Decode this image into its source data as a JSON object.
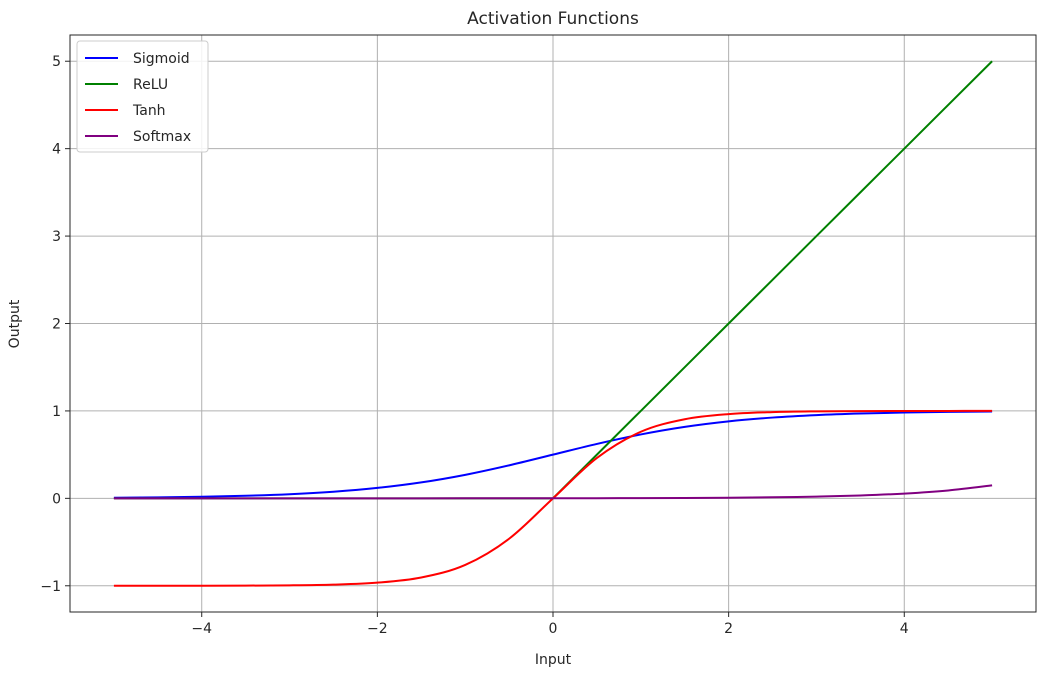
{
  "chart_data": {
    "type": "line",
    "title": "Activation Functions",
    "xlabel": "Input",
    "ylabel": "Output",
    "xlim": [
      -5.5,
      5.5
    ],
    "ylim": [
      -1.3,
      5.3
    ],
    "xticks": [
      -4,
      -2,
      0,
      2,
      4
    ],
    "yticks": [
      -1,
      0,
      1,
      2,
      3,
      4,
      5
    ],
    "xtick_labels": [
      "−4",
      "−2",
      "0",
      "2",
      "4"
    ],
    "ytick_labels": [
      "−1",
      "0",
      "1",
      "2",
      "3",
      "4",
      "5"
    ],
    "grid": true,
    "legend_position": "top-left",
    "x": [
      -5.0,
      -4.5,
      -4.0,
      -3.5,
      -3.0,
      -2.5,
      -2.0,
      -1.5,
      -1.0,
      -0.5,
      0.0,
      0.5,
      1.0,
      1.5,
      2.0,
      2.5,
      3.0,
      3.5,
      4.0,
      4.5,
      5.0
    ],
    "series": [
      {
        "name": "Sigmoid",
        "color": "#0000ff",
        "values": [
          0.0067,
          0.011,
          0.018,
          0.0293,
          0.0474,
          0.0759,
          0.1192,
          0.1824,
          0.2689,
          0.3775,
          0.5,
          0.6225,
          0.7311,
          0.8176,
          0.8808,
          0.9241,
          0.9526,
          0.9707,
          0.982,
          0.989,
          0.9933
        ]
      },
      {
        "name": "ReLU",
        "color": "#008000",
        "values": [
          0,
          0,
          0,
          0,
          0,
          0,
          0,
          0,
          0,
          0,
          0,
          0.5,
          1.0,
          1.5,
          2.0,
          2.5,
          3.0,
          3.5,
          4.0,
          4.5,
          5.0
        ]
      },
      {
        "name": "Tanh",
        "color": "#ff0000",
        "values": [
          -0.9999,
          -0.9998,
          -0.9993,
          -0.9982,
          -0.9951,
          -0.9866,
          -0.964,
          -0.9051,
          -0.7616,
          -0.4621,
          0.0,
          0.4621,
          0.7616,
          0.9051,
          0.964,
          0.9866,
          0.9951,
          0.9982,
          0.9993,
          0.9998,
          0.9999
        ]
      },
      {
        "name": "Softmax",
        "color": "#800080",
        "values": [
          0.0,
          0.0,
          0.0,
          0.0,
          0.0,
          0.0001,
          0.0001,
          0.0002,
          0.0004,
          0.0006,
          0.001,
          0.0016,
          0.0027,
          0.0045,
          0.0074,
          0.0122,
          0.0201,
          0.0331,
          0.0546,
          0.0901,
          0.1485
        ]
      }
    ]
  }
}
